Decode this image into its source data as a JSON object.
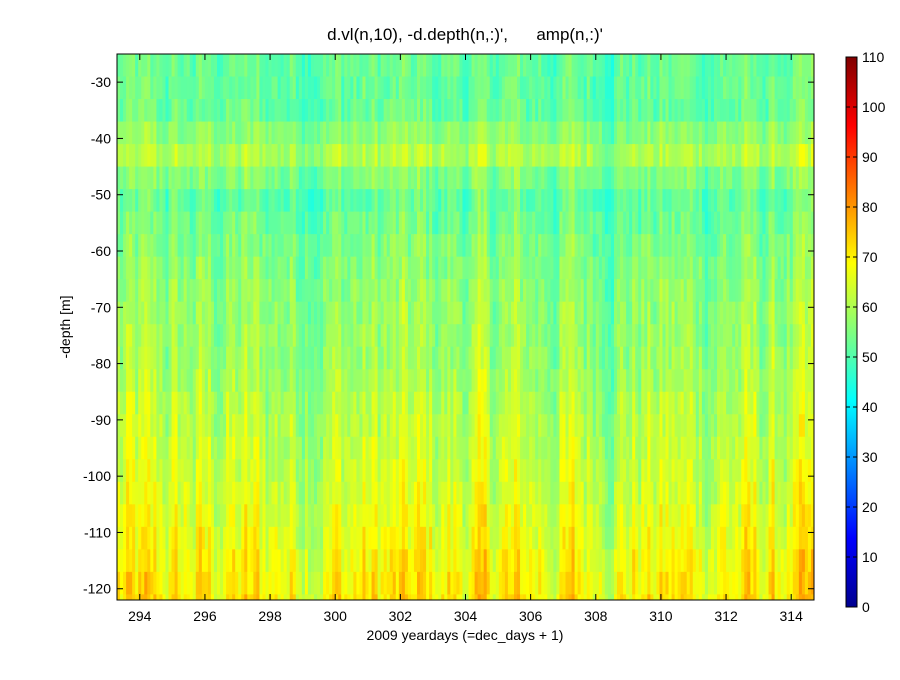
{
  "chart_data": {
    "type": "heatmap",
    "title": "d.vl(n,10), -d.depth(n,:)',      amp(n,:)'",
    "xlabel": "2009 yeardays (=dec_days + 1)",
    "ylabel": "-depth [m]",
    "xlim": [
      293.3,
      314.7
    ],
    "ylim": [
      -122,
      -25
    ],
    "xticks": [
      294,
      296,
      298,
      300,
      302,
      304,
      306,
      308,
      310,
      312,
      314
    ],
    "yticks": [
      -30,
      -40,
      -50,
      -60,
      -70,
      -80,
      -90,
      -100,
      -110,
      -120
    ],
    "colorbar": {
      "min": 0,
      "max": 110,
      "ticks": [
        0,
        10,
        20,
        30,
        40,
        50,
        60,
        70,
        80,
        90,
        100,
        110
      ],
      "colormap": "jet"
    },
    "z_description_values": {
      "depth_profile_mean": [
        {
          "depth": -28,
          "value": 52
        },
        {
          "depth": -35,
          "value": 52
        },
        {
          "depth": -43,
          "value": 60
        },
        {
          "depth": -50,
          "value": 51
        },
        {
          "depth": -60,
          "value": 55
        },
        {
          "depth": -70,
          "value": 57
        },
        {
          "depth": -80,
          "value": 58
        },
        {
          "depth": -90,
          "value": 61
        },
        {
          "depth": -100,
          "value": 63
        },
        {
          "depth": -110,
          "value": 66
        },
        {
          "depth": -120,
          "value": 70
        }
      ]
    }
  }
}
